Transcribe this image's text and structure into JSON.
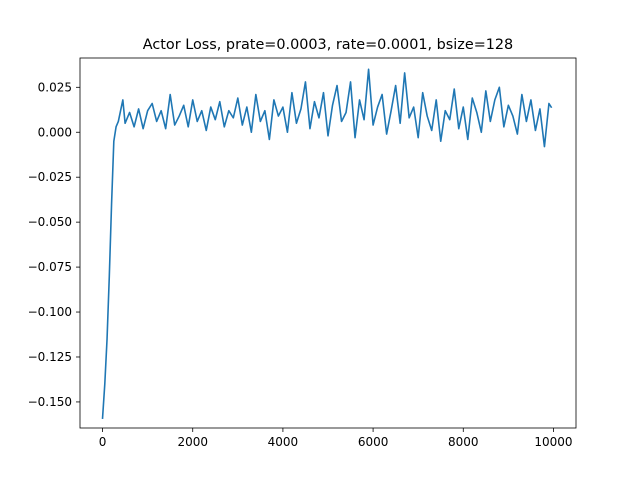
{
  "chart_data": {
    "type": "line",
    "title": "Actor Loss, prate=0.0003, rate=0.0001, bsize=128",
    "xlabel": "",
    "ylabel": "",
    "xlim": [
      -500,
      10500
    ],
    "ylim": [
      -0.1645,
      0.0413
    ],
    "grid": false,
    "legend": "none",
    "x_ticks": [
      {
        "value": 0,
        "label": "0"
      },
      {
        "value": 2000,
        "label": "2000"
      },
      {
        "value": 4000,
        "label": "4000"
      },
      {
        "value": 6000,
        "label": "6000"
      },
      {
        "value": 8000,
        "label": "8000"
      },
      {
        "value": 10000,
        "label": "10000"
      }
    ],
    "y_ticks": [
      {
        "value": 0.025,
        "label": "0.025"
      },
      {
        "value": 0.0,
        "label": "0.000"
      },
      {
        "value": -0.025,
        "label": "−0.025"
      },
      {
        "value": -0.05,
        "label": "−0.050"
      },
      {
        "value": -0.075,
        "label": "−0.075"
      },
      {
        "value": -0.1,
        "label": "−0.100"
      },
      {
        "value": -0.125,
        "label": "−0.125"
      },
      {
        "value": -0.15,
        "label": "−0.150"
      }
    ],
    "series": [
      {
        "color": "#1f77b4",
        "x": [
          0,
          50,
          100,
          150,
          200,
          250,
          300,
          350,
          400,
          450,
          500,
          600,
          700,
          800,
          900,
          1000,
          1100,
          1200,
          1300,
          1400,
          1500,
          1600,
          1700,
          1800,
          1900,
          2000,
          2100,
          2200,
          2300,
          2400,
          2500,
          2600,
          2700,
          2800,
          2900,
          3000,
          3100,
          3200,
          3300,
          3400,
          3500,
          3600,
          3700,
          3800,
          3900,
          4000,
          4100,
          4200,
          4300,
          4400,
          4500,
          4600,
          4700,
          4800,
          4900,
          5000,
          5100,
          5200,
          5300,
          5400,
          5500,
          5600,
          5700,
          5800,
          5900,
          6000,
          6100,
          6200,
          6300,
          6400,
          6500,
          6600,
          6700,
          6800,
          6900,
          7000,
          7100,
          7200,
          7300,
          7400,
          7500,
          7600,
          7700,
          7800,
          7900,
          8000,
          8100,
          8200,
          8300,
          8400,
          8500,
          8600,
          8700,
          8800,
          8900,
          9000,
          9100,
          9200,
          9300,
          9400,
          9500,
          9600,
          9700,
          9800,
          9900,
          9950
        ],
        "y": [
          -0.159,
          -0.14,
          -0.115,
          -0.08,
          -0.04,
          -0.005,
          0.003,
          0.006,
          0.012,
          0.018,
          0.005,
          0.011,
          0.003,
          0.013,
          0.002,
          0.012,
          0.016,
          0.006,
          0.012,
          0.002,
          0.021,
          0.004,
          0.009,
          0.015,
          0.003,
          0.018,
          0.006,
          0.012,
          0.001,
          0.014,
          0.007,
          0.017,
          0.003,
          0.012,
          0.008,
          0.019,
          0.004,
          0.014,
          0.0,
          0.021,
          0.006,
          0.012,
          -0.004,
          0.018,
          0.009,
          0.014,
          0.0,
          0.022,
          0.005,
          0.013,
          0.028,
          0.002,
          0.017,
          0.008,
          0.022,
          -0.002,
          0.015,
          0.026,
          0.006,
          0.011,
          0.028,
          -0.003,
          0.018,
          0.007,
          0.035,
          0.004,
          0.014,
          0.021,
          -0.001,
          0.012,
          0.026,
          0.005,
          0.033,
          0.008,
          0.014,
          -0.003,
          0.022,
          0.009,
          0.001,
          0.018,
          -0.005,
          0.012,
          0.007,
          0.024,
          0.002,
          0.014,
          -0.004,
          0.019,
          0.011,
          0.0,
          0.023,
          0.006,
          0.018,
          0.025,
          0.003,
          0.015,
          0.009,
          -0.001,
          0.021,
          0.006,
          0.018,
          0.001,
          0.013,
          -0.008,
          0.016,
          0.014
        ]
      }
    ]
  }
}
